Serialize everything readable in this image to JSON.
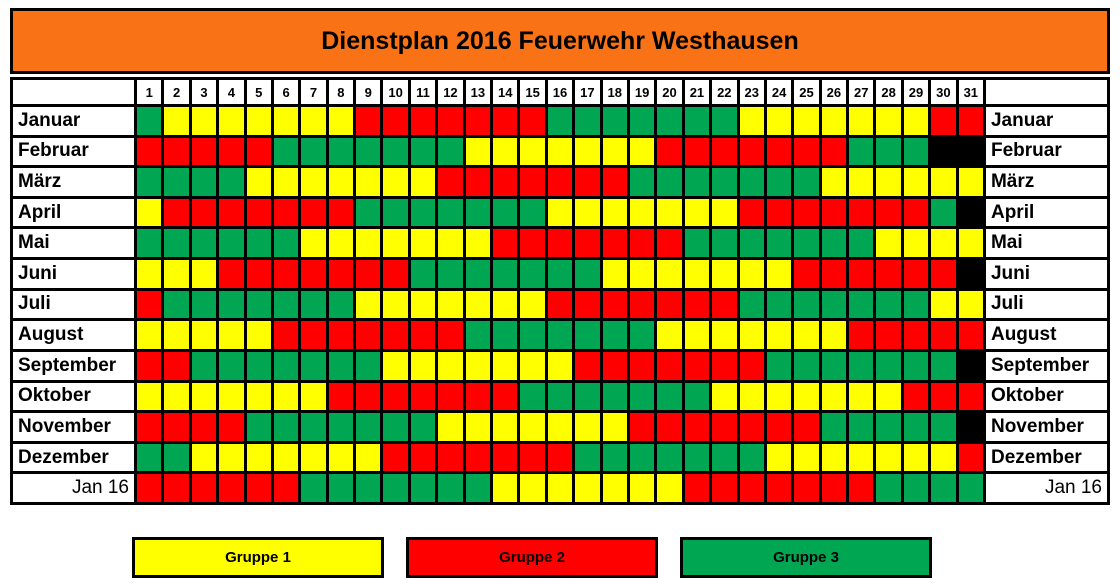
{
  "title": "Dienstplan 2016 Feuerwehr Westhausen",
  "colors": {
    "header_bg": "#F97316",
    "group1": "#FFFF00",
    "group2": "#FF0000",
    "group3": "#00A651",
    "none": "#000000",
    "cell_bg": "#FFFFFF",
    "grid": "#000000",
    "text": "#000000"
  },
  "legend": {
    "items": [
      {
        "label": "Gruppe 1",
        "color_key": "group1"
      },
      {
        "label": "Gruppe 2",
        "color_key": "group2"
      },
      {
        "label": "Gruppe 3",
        "color_key": "group3"
      }
    ]
  },
  "chart_data": {
    "type": "heatmap",
    "title": "Dienstplan 2016 Feuerwehr Westhausen",
    "x_labels": [
      "1",
      "2",
      "3",
      "4",
      "5",
      "6",
      "7",
      "8",
      "9",
      "10",
      "11",
      "12",
      "13",
      "14",
      "15",
      "16",
      "17",
      "18",
      "19",
      "20",
      "21",
      "22",
      "23",
      "24",
      "25",
      "26",
      "27",
      "28",
      "29",
      "30",
      "31"
    ],
    "value_legend": {
      "0": "kein Tag (schwarz)",
      "1": "Gruppe 1 (gelb)",
      "2": "Gruppe 2 (rot)",
      "3": "Gruppe 3 (grün)"
    },
    "layout": {
      "row_labels_both_sides": true,
      "grid": true
    },
    "rows": [
      {
        "label": "Januar",
        "style": "month",
        "values": [
          3,
          1,
          1,
          1,
          1,
          1,
          1,
          1,
          2,
          2,
          2,
          2,
          2,
          2,
          2,
          3,
          3,
          3,
          3,
          3,
          3,
          3,
          1,
          1,
          1,
          1,
          1,
          1,
          1,
          2,
          2
        ]
      },
      {
        "label": "Februar",
        "style": "month",
        "values": [
          2,
          2,
          2,
          2,
          2,
          3,
          3,
          3,
          3,
          3,
          3,
          3,
          1,
          1,
          1,
          1,
          1,
          1,
          1,
          2,
          2,
          2,
          2,
          2,
          2,
          2,
          3,
          3,
          3,
          0,
          0
        ]
      },
      {
        "label": "März",
        "style": "month",
        "values": [
          3,
          3,
          3,
          3,
          1,
          1,
          1,
          1,
          1,
          1,
          1,
          2,
          2,
          2,
          2,
          2,
          2,
          2,
          3,
          3,
          3,
          3,
          3,
          3,
          3,
          1,
          1,
          1,
          1,
          1,
          1
        ]
      },
      {
        "label": "April",
        "style": "month",
        "values": [
          1,
          2,
          2,
          2,
          2,
          2,
          2,
          2,
          3,
          3,
          3,
          3,
          3,
          3,
          3,
          1,
          1,
          1,
          1,
          1,
          1,
          1,
          2,
          2,
          2,
          2,
          2,
          2,
          2,
          3,
          0
        ]
      },
      {
        "label": "Mai",
        "style": "month",
        "values": [
          3,
          3,
          3,
          3,
          3,
          3,
          1,
          1,
          1,
          1,
          1,
          1,
          1,
          2,
          2,
          2,
          2,
          2,
          2,
          2,
          3,
          3,
          3,
          3,
          3,
          3,
          3,
          1,
          1,
          1,
          1
        ]
      },
      {
        "label": "Juni",
        "style": "month",
        "values": [
          1,
          1,
          1,
          2,
          2,
          2,
          2,
          2,
          2,
          2,
          3,
          3,
          3,
          3,
          3,
          3,
          3,
          1,
          1,
          1,
          1,
          1,
          1,
          1,
          2,
          2,
          2,
          2,
          2,
          2,
          0
        ]
      },
      {
        "label": "Juli",
        "style": "month",
        "values": [
          2,
          3,
          3,
          3,
          3,
          3,
          3,
          3,
          1,
          1,
          1,
          1,
          1,
          1,
          1,
          2,
          2,
          2,
          2,
          2,
          2,
          2,
          3,
          3,
          3,
          3,
          3,
          3,
          3,
          1,
          1
        ]
      },
      {
        "label": "August",
        "style": "month",
        "values": [
          1,
          1,
          1,
          1,
          1,
          2,
          2,
          2,
          2,
          2,
          2,
          2,
          3,
          3,
          3,
          3,
          3,
          3,
          3,
          1,
          1,
          1,
          1,
          1,
          1,
          1,
          2,
          2,
          2,
          2,
          2
        ]
      },
      {
        "label": "September",
        "style": "month",
        "values": [
          2,
          2,
          3,
          3,
          3,
          3,
          3,
          3,
          3,
          1,
          1,
          1,
          1,
          1,
          1,
          1,
          2,
          2,
          2,
          2,
          2,
          2,
          2,
          3,
          3,
          3,
          3,
          3,
          3,
          3,
          0
        ]
      },
      {
        "label": "Oktober",
        "style": "month",
        "values": [
          1,
          1,
          1,
          1,
          1,
          1,
          1,
          2,
          2,
          2,
          2,
          2,
          2,
          2,
          3,
          3,
          3,
          3,
          3,
          3,
          3,
          1,
          1,
          1,
          1,
          1,
          1,
          1,
          2,
          2,
          2
        ]
      },
      {
        "label": "November",
        "style": "month",
        "values": [
          2,
          2,
          2,
          2,
          3,
          3,
          3,
          3,
          3,
          3,
          3,
          1,
          1,
          1,
          1,
          1,
          1,
          1,
          2,
          2,
          2,
          2,
          2,
          2,
          2,
          3,
          3,
          3,
          3,
          3,
          0
        ]
      },
      {
        "label": "Dezember",
        "style": "month",
        "values": [
          3,
          3,
          1,
          1,
          1,
          1,
          1,
          1,
          1,
          2,
          2,
          2,
          2,
          2,
          2,
          2,
          3,
          3,
          3,
          3,
          3,
          3,
          3,
          1,
          1,
          1,
          1,
          1,
          1,
          1,
          2
        ]
      },
      {
        "label": "Jan 16",
        "style": "plain-right",
        "values": [
          2,
          2,
          2,
          2,
          2,
          2,
          3,
          3,
          3,
          3,
          3,
          3,
          3,
          1,
          1,
          1,
          1,
          1,
          1,
          1,
          2,
          2,
          2,
          2,
          2,
          2,
          2,
          3,
          3,
          3,
          3
        ]
      }
    ]
  }
}
